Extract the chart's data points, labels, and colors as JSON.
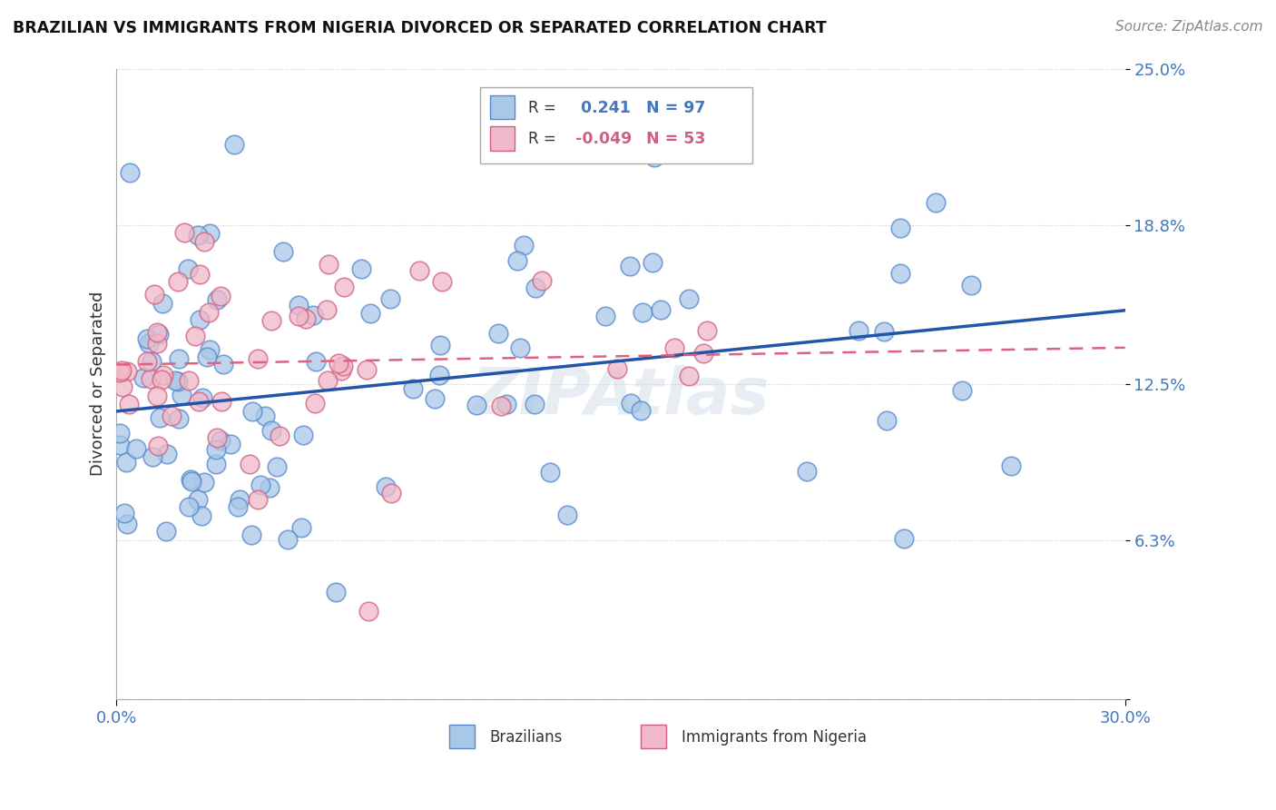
{
  "title": "BRAZILIAN VS IMMIGRANTS FROM NIGERIA DIVORCED OR SEPARATED CORRELATION CHART",
  "source": "Source: ZipAtlas.com",
  "ylabel": "Divorced or Separated",
  "legend_label1": "Brazilians",
  "legend_label2": "Immigrants from Nigeria",
  "R1": 0.241,
  "N1": 97,
  "R2": -0.049,
  "N2": 53,
  "xlim": [
    0.0,
    30.0
  ],
  "ylim": [
    0.0,
    25.0
  ],
  "ytick_vals": [
    0.0,
    6.3,
    12.5,
    18.8,
    25.0
  ],
  "ytick_labels": [
    "",
    "6.3%",
    "12.5%",
    "18.8%",
    "25.0%"
  ],
  "xtick_vals": [
    0.0,
    30.0
  ],
  "xtick_labels": [
    "0.0%",
    "30.0%"
  ],
  "color_blue_fill": "#a8c8e8",
  "color_blue_edge": "#5588cc",
  "color_pink_fill": "#f0b8c8",
  "color_pink_edge": "#d06080",
  "line_blue": "#2255aa",
  "line_pink": "#e06080",
  "axis_label_color": "#4477bb",
  "watermark": "ZIPAtlas"
}
